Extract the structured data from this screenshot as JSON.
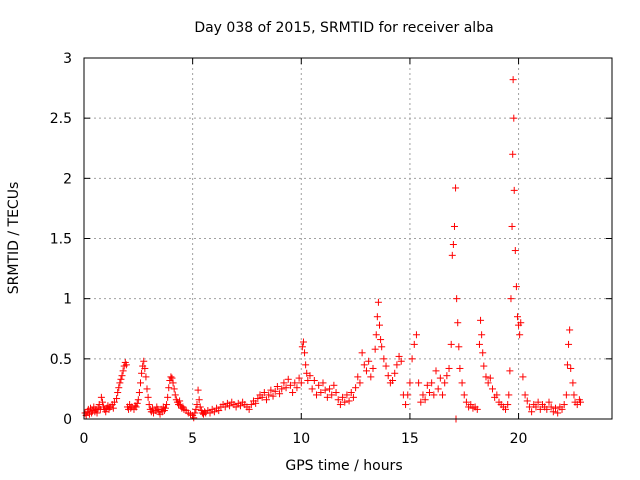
{
  "chart_data": {
    "type": "scatter",
    "title": "Day 038 of 2015, SRMTID for receiver alba",
    "xlabel": "GPS time / hours",
    "ylabel": "SRMTID / TECUs",
    "xlim": [
      0,
      24.3
    ],
    "ylim": [
      0,
      3
    ],
    "xticks": [
      0,
      5,
      10,
      15,
      20
    ],
    "xtick_labels": [
      "0",
      "5",
      "10",
      "15",
      "20"
    ],
    "yticks": [
      0,
      0.5,
      1,
      1.5,
      2,
      2.5,
      3
    ],
    "ytick_labels": [
      "0",
      "0.5",
      "1",
      "1.5",
      "2",
      "2.5",
      "3"
    ],
    "grid": true,
    "marker": "plus",
    "color": "#ff0000",
    "series": [
      {
        "name": "SRMTID",
        "points": [
          [
            0.05,
            0.05
          ],
          [
            0.1,
            0.03
          ],
          [
            0.15,
            0.06
          ],
          [
            0.2,
            0.08
          ],
          [
            0.25,
            0.04
          ],
          [
            0.3,
            0.09
          ],
          [
            0.35,
            0.05
          ],
          [
            0.4,
            0.07
          ],
          [
            0.45,
            0.1
          ],
          [
            0.5,
            0.06
          ],
          [
            0.55,
            0.08
          ],
          [
            0.6,
            0.05
          ],
          [
            0.65,
            0.09
          ],
          [
            0.7,
            0.12
          ],
          [
            0.75,
            0.08
          ],
          [
            0.8,
            0.18
          ],
          [
            0.85,
            0.14
          ],
          [
            0.9,
            0.1
          ],
          [
            0.95,
            0.08
          ],
          [
            1.0,
            0.06
          ],
          [
            1.05,
            0.09
          ],
          [
            1.1,
            0.11
          ],
          [
            1.15,
            0.08
          ],
          [
            1.2,
            0.1
          ],
          [
            1.3,
            0.12
          ],
          [
            1.35,
            0.09
          ],
          [
            1.4,
            0.14
          ],
          [
            1.5,
            0.17
          ],
          [
            1.55,
            0.22
          ],
          [
            1.6,
            0.26
          ],
          [
            1.65,
            0.3
          ],
          [
            1.7,
            0.33
          ],
          [
            1.75,
            0.36
          ],
          [
            1.8,
            0.4
          ],
          [
            1.85,
            0.44
          ],
          [
            1.9,
            0.47
          ],
          [
            1.95,
            0.45
          ],
          [
            2.0,
            0.1
          ],
          [
            2.05,
            0.08
          ],
          [
            2.1,
            0.12
          ],
          [
            2.15,
            0.09
          ],
          [
            2.2,
            0.1
          ],
          [
            2.3,
            0.08
          ],
          [
            2.35,
            0.11
          ],
          [
            2.4,
            0.1
          ],
          [
            2.45,
            0.13
          ],
          [
            2.5,
            0.16
          ],
          [
            2.55,
            0.22
          ],
          [
            2.6,
            0.3
          ],
          [
            2.65,
            0.38
          ],
          [
            2.7,
            0.44
          ],
          [
            2.75,
            0.48
          ],
          [
            2.8,
            0.42
          ],
          [
            2.85,
            0.35
          ],
          [
            2.9,
            0.25
          ],
          [
            2.95,
            0.18
          ],
          [
            3.0,
            0.12
          ],
          [
            3.05,
            0.08
          ],
          [
            3.1,
            0.06
          ],
          [
            3.15,
            0.09
          ],
          [
            3.2,
            0.05
          ],
          [
            3.3,
            0.07
          ],
          [
            3.35,
            0.1
          ],
          [
            3.4,
            0.08
          ],
          [
            3.45,
            0.06
          ],
          [
            3.5,
            0.04
          ],
          [
            3.55,
            0.08
          ],
          [
            3.6,
            0.06
          ],
          [
            3.65,
            0.1
          ],
          [
            3.7,
            0.07
          ],
          [
            3.75,
            0.09
          ],
          [
            3.8,
            0.12
          ],
          [
            3.85,
            0.18
          ],
          [
            3.9,
            0.26
          ],
          [
            3.95,
            0.32
          ],
          [
            4.0,
            0.35
          ],
          [
            4.05,
            0.34
          ],
          [
            4.1,
            0.3
          ],
          [
            4.15,
            0.25
          ],
          [
            4.2,
            0.2
          ],
          [
            4.25,
            0.16
          ],
          [
            4.3,
            0.14
          ],
          [
            4.35,
            0.12
          ],
          [
            4.4,
            0.15
          ],
          [
            4.45,
            0.11
          ],
          [
            4.5,
            0.09
          ],
          [
            4.55,
            0.1
          ],
          [
            4.6,
            0.08
          ],
          [
            4.7,
            0.07
          ],
          [
            4.8,
            0.05
          ],
          [
            4.9,
            0.04
          ],
          [
            5.0,
            0.03
          ],
          [
            5.05,
            0.01
          ],
          [
            5.1,
            0.05
          ],
          [
            5.15,
            0.08
          ],
          [
            5.2,
            0.12
          ],
          [
            5.25,
            0.24
          ],
          [
            5.3,
            0.16
          ],
          [
            5.35,
            0.1
          ],
          [
            5.4,
            0.07
          ],
          [
            5.45,
            0.05
          ],
          [
            5.5,
            0.04
          ],
          [
            5.55,
            0.06
          ],
          [
            5.6,
            0.05
          ],
          [
            5.7,
            0.07
          ],
          [
            5.8,
            0.05
          ],
          [
            5.9,
            0.08
          ],
          [
            6.0,
            0.06
          ],
          [
            6.1,
            0.09
          ],
          [
            6.2,
            0.07
          ],
          [
            6.3,
            0.1
          ],
          [
            6.4,
            0.12
          ],
          [
            6.5,
            0.1
          ],
          [
            6.6,
            0.13
          ],
          [
            6.7,
            0.11
          ],
          [
            6.8,
            0.14
          ],
          [
            6.9,
            0.12
          ],
          [
            7.0,
            0.1
          ],
          [
            7.1,
            0.13
          ],
          [
            7.2,
            0.11
          ],
          [
            7.3,
            0.14
          ],
          [
            7.4,
            0.12
          ],
          [
            7.5,
            0.1
          ],
          [
            7.6,
            0.08
          ],
          [
            7.7,
            0.12
          ],
          [
            7.8,
            0.15
          ],
          [
            7.9,
            0.13
          ],
          [
            8.0,
            0.17
          ],
          [
            8.1,
            0.2
          ],
          [
            8.2,
            0.18
          ],
          [
            8.3,
            0.22
          ],
          [
            8.4,
            0.16
          ],
          [
            8.5,
            0.2
          ],
          [
            8.6,
            0.24
          ],
          [
            8.7,
            0.19
          ],
          [
            8.8,
            0.23
          ],
          [
            8.9,
            0.27
          ],
          [
            9.0,
            0.21
          ],
          [
            9.1,
            0.25
          ],
          [
            9.2,
            0.3
          ],
          [
            9.3,
            0.26
          ],
          [
            9.4,
            0.33
          ],
          [
            9.5,
            0.28
          ],
          [
            9.6,
            0.22
          ],
          [
            9.7,
            0.3
          ],
          [
            9.8,
            0.26
          ],
          [
            9.9,
            0.34
          ],
          [
            10.0,
            0.3
          ],
          [
            10.05,
            0.6
          ],
          [
            10.1,
            0.64
          ],
          [
            10.15,
            0.55
          ],
          [
            10.2,
            0.45
          ],
          [
            10.25,
            0.38
          ],
          [
            10.3,
            0.32
          ],
          [
            10.4,
            0.36
          ],
          [
            10.5,
            0.25
          ],
          [
            10.6,
            0.32
          ],
          [
            10.7,
            0.2
          ],
          [
            10.8,
            0.28
          ],
          [
            10.9,
            0.22
          ],
          [
            11.0,
            0.3
          ],
          [
            11.1,
            0.24
          ],
          [
            11.2,
            0.18
          ],
          [
            11.3,
            0.25
          ],
          [
            11.4,
            0.2
          ],
          [
            11.5,
            0.28
          ],
          [
            11.6,
            0.22
          ],
          [
            11.7,
            0.16
          ],
          [
            11.8,
            0.12
          ],
          [
            11.9,
            0.18
          ],
          [
            12.0,
            0.14
          ],
          [
            12.1,
            0.2
          ],
          [
            12.2,
            0.15
          ],
          [
            12.3,
            0.22
          ],
          [
            12.4,
            0.18
          ],
          [
            12.5,
            0.26
          ],
          [
            12.6,
            0.35
          ],
          [
            12.7,
            0.3
          ],
          [
            12.8,
            0.55
          ],
          [
            12.9,
            0.45
          ],
          [
            13.0,
            0.4
          ],
          [
            13.1,
            0.48
          ],
          [
            13.2,
            0.35
          ],
          [
            13.3,
            0.42
          ],
          [
            13.4,
            0.58
          ],
          [
            13.45,
            0.7
          ],
          [
            13.5,
            0.85
          ],
          [
            13.55,
            0.97
          ],
          [
            13.6,
            0.78
          ],
          [
            13.65,
            0.66
          ],
          [
            13.7,
            0.6
          ],
          [
            13.8,
            0.5
          ],
          [
            13.9,
            0.44
          ],
          [
            14.0,
            0.36
          ],
          [
            14.1,
            0.3
          ],
          [
            14.2,
            0.32
          ],
          [
            14.3,
            0.38
          ],
          [
            14.4,
            0.45
          ],
          [
            14.5,
            0.52
          ],
          [
            14.6,
            0.48
          ],
          [
            14.7,
            0.2
          ],
          [
            14.8,
            0.12
          ],
          [
            14.9,
            0.2
          ],
          [
            15.0,
            0.3
          ],
          [
            15.1,
            0.5
          ],
          [
            15.2,
            0.62
          ],
          [
            15.3,
            0.7
          ],
          [
            15.4,
            0.3
          ],
          [
            15.5,
            0.14
          ],
          [
            15.6,
            0.2
          ],
          [
            15.7,
            0.16
          ],
          [
            15.8,
            0.28
          ],
          [
            15.9,
            0.22
          ],
          [
            16.0,
            0.3
          ],
          [
            16.1,
            0.2
          ],
          [
            16.2,
            0.4
          ],
          [
            16.3,
            0.25
          ],
          [
            16.4,
            0.34
          ],
          [
            16.5,
            0.2
          ],
          [
            16.6,
            0.3
          ],
          [
            16.7,
            0.36
          ],
          [
            16.8,
            0.42
          ],
          [
            16.9,
            0.62
          ],
          [
            16.95,
            1.36
          ],
          [
            17.0,
            1.45
          ],
          [
            17.05,
            1.6
          ],
          [
            17.1,
            1.92
          ],
          [
            17.12,
            0.0
          ],
          [
            17.15,
            1.0
          ],
          [
            17.2,
            0.8
          ],
          [
            17.25,
            0.6
          ],
          [
            17.3,
            0.42
          ],
          [
            17.4,
            0.3
          ],
          [
            17.5,
            0.2
          ],
          [
            17.6,
            0.14
          ],
          [
            17.7,
            0.1
          ],
          [
            17.8,
            0.12
          ],
          [
            17.9,
            0.09
          ],
          [
            18.0,
            0.1
          ],
          [
            18.1,
            0.08
          ],
          [
            18.2,
            0.62
          ],
          [
            18.25,
            0.82
          ],
          [
            18.3,
            0.7
          ],
          [
            18.35,
            0.55
          ],
          [
            18.4,
            0.44
          ],
          [
            18.5,
            0.35
          ],
          [
            18.6,
            0.3
          ],
          [
            18.7,
            0.34
          ],
          [
            18.8,
            0.25
          ],
          [
            18.9,
            0.18
          ],
          [
            19.0,
            0.2
          ],
          [
            19.1,
            0.14
          ],
          [
            19.2,
            0.12
          ],
          [
            19.3,
            0.1
          ],
          [
            19.4,
            0.08
          ],
          [
            19.5,
            0.12
          ],
          [
            19.55,
            0.2
          ],
          [
            19.6,
            0.4
          ],
          [
            19.65,
            1.0
          ],
          [
            19.7,
            1.6
          ],
          [
            19.73,
            2.2
          ],
          [
            19.75,
            2.82
          ],
          [
            19.78,
            2.5
          ],
          [
            19.8,
            1.9
          ],
          [
            19.85,
            1.4
          ],
          [
            19.9,
            1.1
          ],
          [
            19.95,
            0.85
          ],
          [
            20.0,
            0.78
          ],
          [
            20.05,
            0.7
          ],
          [
            20.1,
            0.8
          ],
          [
            20.2,
            0.35
          ],
          [
            20.3,
            0.2
          ],
          [
            20.4,
            0.15
          ],
          [
            20.5,
            0.1
          ],
          [
            20.6,
            0.06
          ],
          [
            20.7,
            0.12
          ],
          [
            20.8,
            0.1
          ],
          [
            20.9,
            0.14
          ],
          [
            21.0,
            0.08
          ],
          [
            21.1,
            0.12
          ],
          [
            21.2,
            0.1
          ],
          [
            21.3,
            0.08
          ],
          [
            21.4,
            0.14
          ],
          [
            21.5,
            0.1
          ],
          [
            21.6,
            0.06
          ],
          [
            21.7,
            0.09
          ],
          [
            21.8,
            0.05
          ],
          [
            21.9,
            0.1
          ],
          [
            22.0,
            0.08
          ],
          [
            22.1,
            0.12
          ],
          [
            22.2,
            0.2
          ],
          [
            22.25,
            0.45
          ],
          [
            22.3,
            0.62
          ],
          [
            22.35,
            0.74
          ],
          [
            22.4,
            0.42
          ],
          [
            22.5,
            0.3
          ],
          [
            22.55,
            0.2
          ],
          [
            22.6,
            0.14
          ],
          [
            22.7,
            0.12
          ],
          [
            22.8,
            0.16
          ],
          [
            22.85,
            0.14
          ]
        ]
      }
    ]
  }
}
